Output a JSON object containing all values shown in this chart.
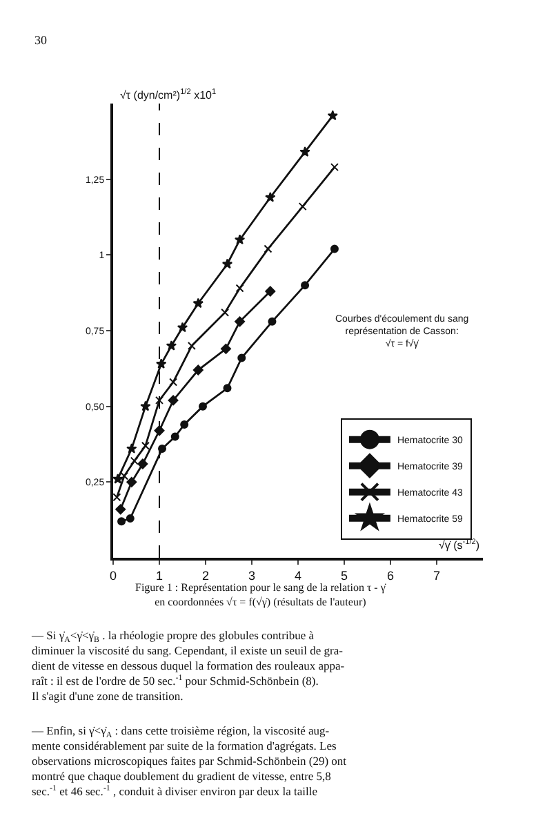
{
  "chart_data": {
    "type": "line",
    "xlabel": "√γ̇ (s$^{-1/2}$)",
    "ylabel": "√τ (dyn/cm²)$^{1/2}$ x10$^{1}$",
    "xlim": [
      0,
      8
    ],
    "xticks": [
      0,
      1,
      2,
      3,
      4,
      5,
      6,
      7
    ],
    "ylim": [
      0,
      1.5
    ],
    "yticks": [
      {
        "value": 0.25,
        "label": "0,25"
      },
      {
        "value": 0.5,
        "label": "0,50"
      },
      {
        "value": 0.75,
        "label": "0,75"
      },
      {
        "value": 1,
        "label": "1"
      },
      {
        "value": 1.25,
        "label": "1,25"
      }
    ],
    "legend": "bottom right",
    "ref_lines": [
      {
        "axis": "x",
        "value": 1,
        "line_style": "dashed"
      }
    ],
    "series": [
      {
        "name": "Hematocrite 30",
        "color": "#111111",
        "marker": "circle",
        "x": [
          0.18,
          0.37,
          1.06,
          1.34,
          1.54,
          1.94,
          2.47,
          2.78,
          3.44,
          4.15,
          4.79
        ],
        "values": [
          0.12,
          0.13,
          0.36,
          0.4,
          0.44,
          0.5,
          0.56,
          0.66,
          0.78,
          0.9,
          1.02
        ]
      },
      {
        "name": "Hematocrite 39",
        "color": "#111111",
        "marker": "diamond",
        "x": [
          0.16,
          0.4,
          0.64,
          1.0,
          1.3,
          1.84,
          2.44,
          2.74,
          3.4
        ],
        "values": [
          0.16,
          0.25,
          0.31,
          0.42,
          0.52,
          0.62,
          0.69,
          0.78,
          0.88
        ]
      },
      {
        "name": "Hematocrite 43",
        "color": "#111111",
        "marker": "cross",
        "x": [
          0.08,
          0.24,
          0.46,
          0.7,
          1.0,
          1.3,
          1.7,
          2.42,
          2.74,
          3.35,
          4.1,
          4.79
        ],
        "values": [
          0.2,
          0.27,
          0.32,
          0.37,
          0.52,
          0.58,
          0.7,
          0.81,
          0.89,
          1.02,
          1.16,
          1.29
        ]
      },
      {
        "name": "Hematocrite 59",
        "color": "#111111",
        "marker": "star",
        "x": [
          0.1,
          0.4,
          0.7,
          1.04,
          1.26,
          1.5,
          1.84,
          2.47,
          2.74,
          3.4,
          4.15,
          4.75
        ],
        "values": [
          0.26,
          0.36,
          0.5,
          0.64,
          0.7,
          0.76,
          0.84,
          0.97,
          1.05,
          1.19,
          1.34,
          1.46
        ]
      }
    ],
    "annotations": [
      "Courbes d'écoulement du sang\nreprésentation de Casson:\n√τ = f√γ̇",
      "Figure 1 : Représentation pour le sang de la relation τ - γ̇\nen coordonnées √τ = f(√γ̇) (résultats de l'auteur)",
      "30",
      "— Si γ̇$_{A}$<γ̇<γ̇$_{B}$ . la rhéologie propre des globules contribue à\ndiminuer la viscosité du sang. Cependant, il existe un seuil de gra-\ndient de vitesse en dessous duquel la formation des rouleaux appa-\nraît : il est de l'ordre de 50 sec.$^{-1}$ pour Schmid-Schönbein (8).\nIl s'agit d'une zone de transition.",
      "— Enfin, si γ̇<γ̇$_{A}$ : dans cette troisième région, la viscosité aug-\nmente considérablement par suite de la formation d'agrégats. Les\nobservations microscopiques faites par Schmid-Schönbein (29) ont\nmontré que chaque doublement du gradient de vitesse, entre 5,8\nsec.$^{-1}$ et 46 sec.$^{-1}$ , conduit à diviser environ par deux la taille"
    ]
  }
}
